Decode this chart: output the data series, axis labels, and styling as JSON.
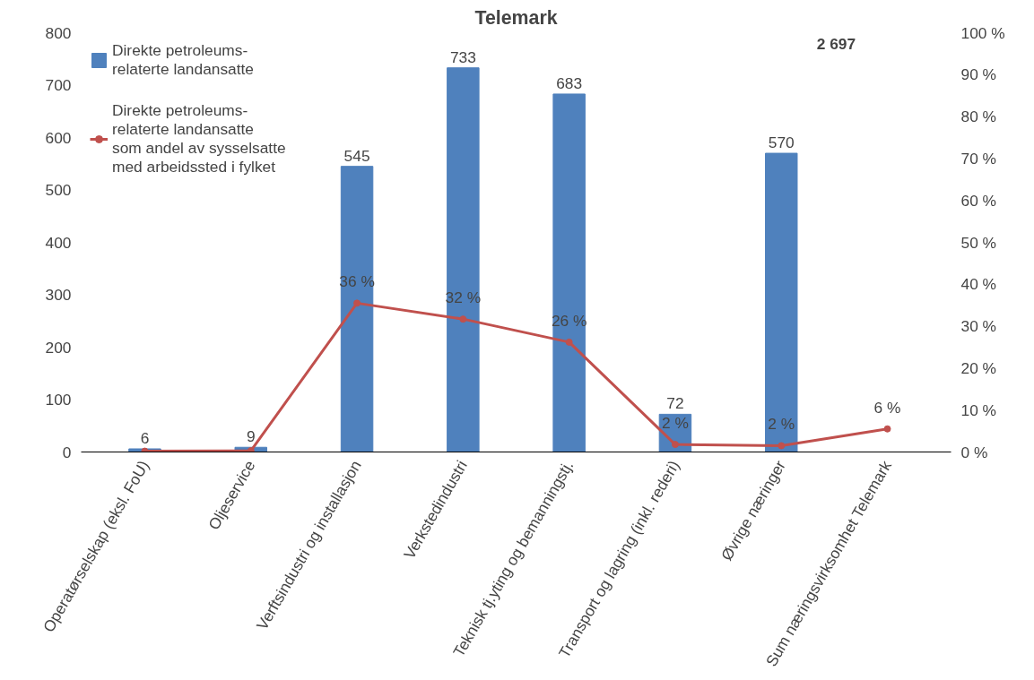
{
  "chart_data": {
    "type": "bar",
    "title": "Telemark",
    "categories": [
      "Operatørselskap (eksl. FoU)",
      "Oljeservice",
      "Verftsindustri og installasjon",
      "Verkstedindustri",
      "Teknisk tj.yting og bemanningstj.",
      "Transport og lagring (inkl. rederi)",
      "Øvrige næringer",
      "Sum næringsvirksomhet Telemark"
    ],
    "series": [
      {
        "name": "Direkte petroleums-relaterte landansatte",
        "color": "#4f81bd",
        "values": [
          6,
          9,
          545,
          733,
          683,
          72,
          570,
          null
        ],
        "value_labels": [
          "6",
          "9",
          "545",
          "733",
          "683",
          "72",
          "570",
          null
        ]
      },
      {
        "name": "Direkte petroleums-relaterte landansatte som andel av sysselsatte med arbeidssted i fylket",
        "type": "line",
        "axis": "y2",
        "color": "#c0504d",
        "values": [
          0.2,
          0.3,
          35.5,
          31.7,
          26.2,
          1.8,
          1.5,
          5.5
        ],
        "value_labels": [
          null,
          null,
          "36 %",
          "32 %",
          "26 %",
          "2 %",
          "2 %",
          "6 %"
        ]
      }
    ],
    "annotations": [
      "2 697"
    ],
    "ylim": [
      0,
      800
    ],
    "yticks": [
      0,
      100,
      200,
      300,
      400,
      500,
      600,
      700,
      800
    ],
    "y2lim": [
      0,
      100
    ],
    "y2ticks": [
      {
        "value": 0,
        "label": "0 %"
      },
      {
        "value": 10,
        "label": "10 %"
      },
      {
        "value": 20,
        "label": "20 %"
      },
      {
        "value": 30,
        "label": "30 %"
      },
      {
        "value": 40,
        "label": "40 %"
      },
      {
        "value": 50,
        "label": "50 %"
      },
      {
        "value": 60,
        "label": "60 %"
      },
      {
        "value": 70,
        "label": "70 %"
      },
      {
        "value": 80,
        "label": "80 %"
      },
      {
        "value": 90,
        "label": "90 %"
      },
      {
        "value": 100,
        "label": "100 %"
      }
    ],
    "grid": false,
    "legend": "top left",
    "marker": "circle",
    "line_style": "solid"
  }
}
